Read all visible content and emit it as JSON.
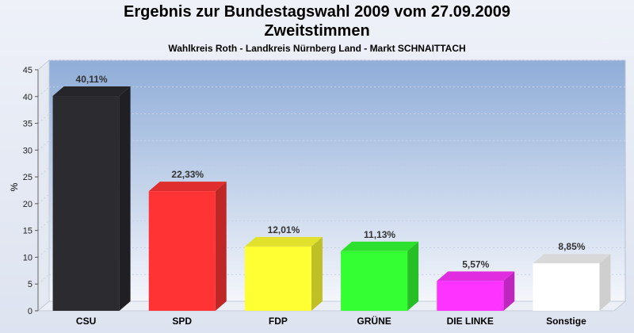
{
  "chart_data": {
    "type": "bar",
    "title": "Ergebnis zur Bundestagswahl 2009 vom 27.09.2009",
    "subtitle": "Zweitstimmen",
    "subtitle2": "Wahlkreis Roth - Landkreis Nürnberg Land - Markt SCHNAITTACH",
    "ylabel": "%",
    "xlabel": "",
    "ylim": [
      0,
      45
    ],
    "yticks": [
      0,
      5,
      10,
      15,
      20,
      25,
      30,
      35,
      40,
      45
    ],
    "grid": true,
    "categories": [
      "CSU",
      "SPD",
      "FDP",
      "GRÜNE",
      "DIE LINKE",
      "Sonstige"
    ],
    "values": [
      40.11,
      22.33,
      12.01,
      11.13,
      5.57,
      8.85
    ],
    "value_labels": [
      "40,11%",
      "22,33%",
      "12,01%",
      "11,13%",
      "5,57%",
      "8,85%"
    ],
    "colors": [
      "#2b2b30",
      "#ff3333",
      "#ffff33",
      "#33ff33",
      "#ff33ff",
      "#ffffff"
    ]
  }
}
